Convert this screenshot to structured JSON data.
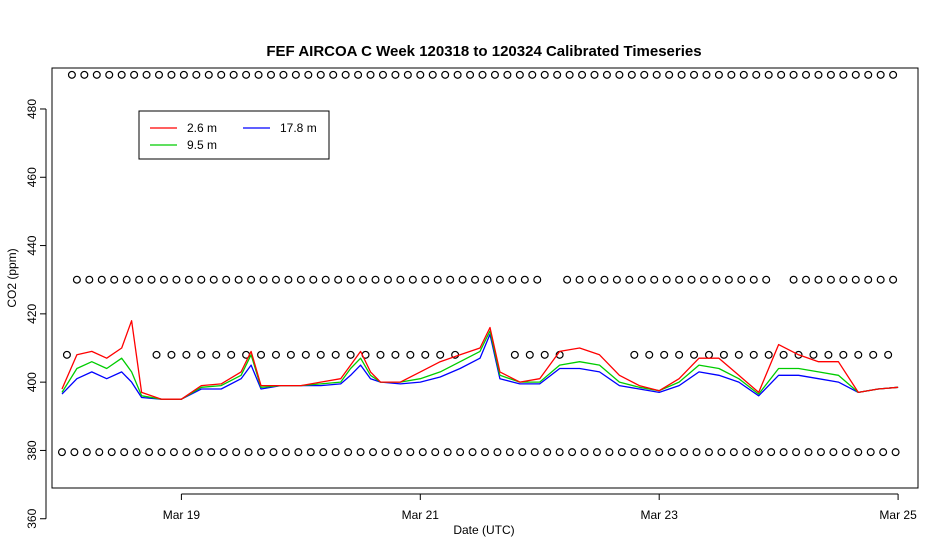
{
  "chart_data": {
    "type": "line",
    "title": "FEF AIRCOA C  Week 120318 to 120324  Calibrated Timeseries",
    "xlabel": "Date (UTC)",
    "ylabel": "CO2 (ppm)",
    "xlim": [
      "2012-03-17 22:00",
      "2012-03-25 04:00"
    ],
    "ylim": [
      369,
      492
    ],
    "x_ticks": [
      {
        "x": "2012-03-19",
        "label": "Mar 19"
      },
      {
        "x": "2012-03-21",
        "label": "Mar 21"
      },
      {
        "x": "2012-03-23",
        "label": "Mar 23"
      },
      {
        "x": "2012-03-25",
        "label": "Mar 25"
      }
    ],
    "y_ticks": [
      360,
      380,
      400,
      420,
      440,
      460,
      480
    ],
    "grid": false,
    "legend": {
      "placement": "top-left",
      "entries": [
        {
          "name": "2.6 m",
          "color": "#ff0000"
        },
        {
          "name": "9.5 m",
          "color": "#00cc00"
        },
        {
          "name": "17.8 m",
          "color": "#0000ff"
        }
      ]
    },
    "series": [
      {
        "name": "17.8 m",
        "color": "#0000ff",
        "x": [
          "2012-03-18 00:00",
          "2012-03-18 03:00",
          "2012-03-18 06:00",
          "2012-03-18 09:00",
          "2012-03-18 12:00",
          "2012-03-18 14:00",
          "2012-03-18 16:00",
          "2012-03-18 20:00",
          "2012-03-19 00:00",
          "2012-03-19 04:00",
          "2012-03-19 08:00",
          "2012-03-19 12:00",
          "2012-03-19 14:00",
          "2012-03-19 16:00",
          "2012-03-19 20:00",
          "2012-03-20 00:00",
          "2012-03-20 04:00",
          "2012-03-20 08:00",
          "2012-03-20 10:00",
          "2012-03-20 12:00",
          "2012-03-20 14:00",
          "2012-03-20 16:00",
          "2012-03-20 20:00",
          "2012-03-21 00:00",
          "2012-03-21 04:00",
          "2012-03-21 08:00",
          "2012-03-21 12:00",
          "2012-03-21 14:00",
          "2012-03-21 16:00",
          "2012-03-21 20:00",
          "2012-03-22 00:00",
          "2012-03-22 04:00",
          "2012-03-22 08:00",
          "2012-03-22 12:00",
          "2012-03-22 16:00",
          "2012-03-22 20:00",
          "2012-03-23 00:00",
          "2012-03-23 04:00",
          "2012-03-23 08:00",
          "2012-03-23 12:00",
          "2012-03-23 16:00",
          "2012-03-23 20:00",
          "2012-03-24 00:00",
          "2012-03-24 04:00",
          "2012-03-24 08:00",
          "2012-03-24 12:00",
          "2012-03-24 16:00",
          "2012-03-24 20:00",
          "2012-03-25 00:00"
        ],
        "y": [
          396.5,
          401,
          403,
          401,
          403,
          400,
          395.5,
          395,
          395,
          398,
          398,
          401,
          405,
          398,
          399,
          399,
          399,
          399.5,
          402,
          405,
          401,
          400,
          399.5,
          400,
          401.5,
          404,
          407,
          414,
          401,
          399.5,
          399.5,
          404,
          404,
          403,
          399,
          398,
          397,
          399,
          403,
          402,
          400,
          396,
          402,
          402,
          401,
          400,
          397,
          398,
          398.5
        ]
      },
      {
        "name": "9.5 m",
        "color": "#00cc00",
        "x": [
          "2012-03-18 00:00",
          "2012-03-18 03:00",
          "2012-03-18 06:00",
          "2012-03-18 09:00",
          "2012-03-18 12:00",
          "2012-03-18 14:00",
          "2012-03-18 16:00",
          "2012-03-18 20:00",
          "2012-03-19 00:00",
          "2012-03-19 04:00",
          "2012-03-19 08:00",
          "2012-03-19 12:00",
          "2012-03-19 14:00",
          "2012-03-19 16:00",
          "2012-03-19 20:00",
          "2012-03-20 00:00",
          "2012-03-20 04:00",
          "2012-03-20 08:00",
          "2012-03-20 10:00",
          "2012-03-20 12:00",
          "2012-03-20 14:00",
          "2012-03-20 16:00",
          "2012-03-20 20:00",
          "2012-03-21 00:00",
          "2012-03-21 04:00",
          "2012-03-21 08:00",
          "2012-03-21 12:00",
          "2012-03-21 14:00",
          "2012-03-21 16:00",
          "2012-03-21 20:00",
          "2012-03-22 00:00",
          "2012-03-22 04:00",
          "2012-03-22 08:00",
          "2012-03-22 12:00",
          "2012-03-22 16:00",
          "2012-03-22 20:00",
          "2012-03-23 00:00",
          "2012-03-23 04:00",
          "2012-03-23 08:00",
          "2012-03-23 12:00",
          "2012-03-23 16:00",
          "2012-03-23 20:00",
          "2012-03-24 00:00",
          "2012-03-24 04:00",
          "2012-03-24 08:00",
          "2012-03-24 12:00",
          "2012-03-24 16:00",
          "2012-03-24 20:00",
          "2012-03-25 00:00"
        ],
        "y": [
          397,
          404,
          406,
          404,
          407,
          403,
          396,
          395,
          395,
          398.5,
          399,
          402,
          408,
          398.5,
          399,
          399,
          399.5,
          400,
          404,
          407,
          402,
          400,
          400,
          401,
          403,
          406,
          409,
          415,
          402,
          400,
          400,
          405,
          406,
          405,
          400,
          398.5,
          397.5,
          400,
          405,
          404,
          401,
          396.5,
          404,
          404,
          403,
          402,
          397,
          398,
          398.5
        ]
      },
      {
        "name": "2.6 m",
        "color": "#ff0000",
        "x": [
          "2012-03-18 00:00",
          "2012-03-18 03:00",
          "2012-03-18 06:00",
          "2012-03-18 09:00",
          "2012-03-18 12:00",
          "2012-03-18 14:00",
          "2012-03-18 16:00",
          "2012-03-18 20:00",
          "2012-03-19 00:00",
          "2012-03-19 04:00",
          "2012-03-19 08:00",
          "2012-03-19 12:00",
          "2012-03-19 14:00",
          "2012-03-19 16:00",
          "2012-03-19 20:00",
          "2012-03-20 00:00",
          "2012-03-20 04:00",
          "2012-03-20 08:00",
          "2012-03-20 10:00",
          "2012-03-20 12:00",
          "2012-03-20 14:00",
          "2012-03-20 16:00",
          "2012-03-20 20:00",
          "2012-03-21 00:00",
          "2012-03-21 04:00",
          "2012-03-21 08:00",
          "2012-03-21 12:00",
          "2012-03-21 14:00",
          "2012-03-21 16:00",
          "2012-03-21 20:00",
          "2012-03-22 00:00",
          "2012-03-22 04:00",
          "2012-03-22 08:00",
          "2012-03-22 12:00",
          "2012-03-22 16:00",
          "2012-03-22 20:00",
          "2012-03-23 00:00",
          "2012-03-23 04:00",
          "2012-03-23 08:00",
          "2012-03-23 12:00",
          "2012-03-23 16:00",
          "2012-03-23 20:00",
          "2012-03-24 00:00",
          "2012-03-24 04:00",
          "2012-03-24 08:00",
          "2012-03-24 12:00",
          "2012-03-24 16:00",
          "2012-03-24 20:00",
          "2012-03-25 00:00"
        ],
        "y": [
          398,
          408,
          409,
          407,
          410,
          418,
          397,
          395,
          395,
          399,
          399.5,
          403,
          409,
          399,
          399,
          399,
          400,
          401,
          405,
          409,
          403,
          400,
          400,
          403,
          406,
          408,
          410,
          416,
          403,
          400,
          401,
          409,
          410,
          408,
          402,
          399,
          397.5,
          401,
          407,
          407,
          402,
          397,
          411,
          408,
          406,
          406,
          397,
          398,
          398.5
        ]
      }
    ],
    "calibration_markers": {
      "marker": "o",
      "color": "#000000",
      "levels": [
        {
          "y": 490,
          "x": [
            "2012-03-18 02:00",
            "2012-03-18 04:30",
            "2012-03-18 07:00",
            "2012-03-18 09:30",
            "2012-03-18 12:00",
            "2012-03-18 14:30",
            "2012-03-18 17:00",
            "2012-03-18 19:30",
            "2012-03-18 22:00",
            "2012-03-19 00:30",
            "2012-03-19 03:00",
            "2012-03-19 05:30",
            "2012-03-19 08:00",
            "2012-03-19 10:30",
            "2012-03-19 13:00",
            "2012-03-19 15:30",
            "2012-03-19 18:00",
            "2012-03-19 20:30",
            "2012-03-19 23:00",
            "2012-03-20 01:30",
            "2012-03-20 04:00",
            "2012-03-20 06:30",
            "2012-03-20 09:00",
            "2012-03-20 11:30",
            "2012-03-20 14:00",
            "2012-03-20 16:30",
            "2012-03-20 19:00",
            "2012-03-20 21:30",
            "2012-03-21 00:00",
            "2012-03-21 02:30",
            "2012-03-21 05:00",
            "2012-03-21 07:30",
            "2012-03-21 10:00",
            "2012-03-21 12:30",
            "2012-03-21 15:00",
            "2012-03-21 17:30",
            "2012-03-21 20:00",
            "2012-03-21 22:30",
            "2012-03-22 01:00",
            "2012-03-22 03:30",
            "2012-03-22 06:00",
            "2012-03-22 08:30",
            "2012-03-22 11:00",
            "2012-03-22 13:30",
            "2012-03-22 16:00",
            "2012-03-22 18:30",
            "2012-03-22 21:00",
            "2012-03-22 23:30",
            "2012-03-23 02:00",
            "2012-03-23 04:30",
            "2012-03-23 07:00",
            "2012-03-23 09:30",
            "2012-03-23 12:00",
            "2012-03-23 14:30",
            "2012-03-23 17:00",
            "2012-03-23 19:30",
            "2012-03-23 22:00",
            "2012-03-24 00:30",
            "2012-03-24 03:00",
            "2012-03-24 05:30",
            "2012-03-24 08:00",
            "2012-03-24 10:30",
            "2012-03-24 13:00",
            "2012-03-24 15:30",
            "2012-03-24 18:00",
            "2012-03-24 20:30",
            "2012-03-24 23:00"
          ]
        },
        {
          "y": 430,
          "x": [
            "2012-03-18 03:00",
            "2012-03-18 05:30",
            "2012-03-18 08:00",
            "2012-03-18 10:30",
            "2012-03-18 13:00",
            "2012-03-18 15:30",
            "2012-03-18 18:00",
            "2012-03-18 20:30",
            "2012-03-18 23:00",
            "2012-03-19 01:30",
            "2012-03-19 04:00",
            "2012-03-19 06:30",
            "2012-03-19 09:00",
            "2012-03-19 11:30",
            "2012-03-19 14:00",
            "2012-03-19 16:30",
            "2012-03-19 19:00",
            "2012-03-19 21:30",
            "2012-03-20 00:00",
            "2012-03-20 02:30",
            "2012-03-20 05:00",
            "2012-03-20 07:30",
            "2012-03-20 10:00",
            "2012-03-20 12:30",
            "2012-03-20 15:00",
            "2012-03-20 17:30",
            "2012-03-20 20:00",
            "2012-03-20 22:30",
            "2012-03-21 01:00",
            "2012-03-21 03:30",
            "2012-03-21 06:00",
            "2012-03-21 08:30",
            "2012-03-21 11:00",
            "2012-03-21 13:30",
            "2012-03-21 16:00",
            "2012-03-21 18:30",
            "2012-03-21 21:00",
            "2012-03-21 23:30",
            "2012-03-22 05:30",
            "2012-03-22 08:00",
            "2012-03-22 10:30",
            "2012-03-22 13:00",
            "2012-03-22 15:30",
            "2012-03-22 18:00",
            "2012-03-22 20:30",
            "2012-03-22 23:00",
            "2012-03-23 01:30",
            "2012-03-23 04:00",
            "2012-03-23 06:30",
            "2012-03-23 09:00",
            "2012-03-23 11:30",
            "2012-03-23 14:00",
            "2012-03-23 16:30",
            "2012-03-23 19:00",
            "2012-03-23 21:30",
            "2012-03-24 03:00",
            "2012-03-24 05:30",
            "2012-03-24 08:00",
            "2012-03-24 10:30",
            "2012-03-24 13:00",
            "2012-03-24 15:30",
            "2012-03-24 18:00",
            "2012-03-24 20:30",
            "2012-03-24 23:00"
          ]
        },
        {
          "y": 408,
          "x": [
            "2012-03-18 01:00",
            "2012-03-18 19:00",
            "2012-03-18 22:00",
            "2012-03-19 01:00",
            "2012-03-19 04:00",
            "2012-03-19 07:00",
            "2012-03-19 10:00",
            "2012-03-19 13:00",
            "2012-03-19 16:00",
            "2012-03-19 19:00",
            "2012-03-19 22:00",
            "2012-03-20 01:00",
            "2012-03-20 04:00",
            "2012-03-20 07:00",
            "2012-03-20 10:00",
            "2012-03-20 13:00",
            "2012-03-20 16:00",
            "2012-03-20 19:00",
            "2012-03-20 22:00",
            "2012-03-21 01:00",
            "2012-03-21 04:00",
            "2012-03-21 07:00",
            "2012-03-21 19:00",
            "2012-03-21 22:00",
            "2012-03-22 01:00",
            "2012-03-22 04:00",
            "2012-03-22 19:00",
            "2012-03-22 22:00",
            "2012-03-23 01:00",
            "2012-03-23 04:00",
            "2012-03-23 07:00",
            "2012-03-23 10:00",
            "2012-03-23 13:00",
            "2012-03-23 16:00",
            "2012-03-23 19:00",
            "2012-03-23 22:00",
            "2012-03-24 01:00",
            "2012-03-24 04:00",
            "2012-03-24 07:00",
            "2012-03-24 10:00",
            "2012-03-24 13:00",
            "2012-03-24 16:00",
            "2012-03-24 19:00",
            "2012-03-24 22:00"
          ]
        },
        {
          "y": 379.5,
          "x": [
            "2012-03-18 00:00",
            "2012-03-18 02:30",
            "2012-03-18 05:00",
            "2012-03-18 07:30",
            "2012-03-18 10:00",
            "2012-03-18 12:30",
            "2012-03-18 15:00",
            "2012-03-18 17:30",
            "2012-03-18 20:00",
            "2012-03-18 22:30",
            "2012-03-19 01:00",
            "2012-03-19 03:30",
            "2012-03-19 06:00",
            "2012-03-19 08:30",
            "2012-03-19 11:00",
            "2012-03-19 13:30",
            "2012-03-19 16:00",
            "2012-03-19 18:30",
            "2012-03-19 21:00",
            "2012-03-19 23:30",
            "2012-03-20 02:00",
            "2012-03-20 04:30",
            "2012-03-20 07:00",
            "2012-03-20 09:30",
            "2012-03-20 12:00",
            "2012-03-20 14:30",
            "2012-03-20 17:00",
            "2012-03-20 19:30",
            "2012-03-20 22:00",
            "2012-03-21 00:30",
            "2012-03-21 03:00",
            "2012-03-21 05:30",
            "2012-03-21 08:00",
            "2012-03-21 10:30",
            "2012-03-21 13:00",
            "2012-03-21 15:30",
            "2012-03-21 18:00",
            "2012-03-21 20:30",
            "2012-03-21 23:00",
            "2012-03-22 01:30",
            "2012-03-22 04:00",
            "2012-03-22 06:30",
            "2012-03-22 09:00",
            "2012-03-22 11:30",
            "2012-03-22 14:00",
            "2012-03-22 16:30",
            "2012-03-22 19:00",
            "2012-03-22 21:30",
            "2012-03-23 00:00",
            "2012-03-23 02:30",
            "2012-03-23 05:00",
            "2012-03-23 07:30",
            "2012-03-23 10:00",
            "2012-03-23 12:30",
            "2012-03-23 15:00",
            "2012-03-23 17:30",
            "2012-03-23 20:00",
            "2012-03-23 22:30",
            "2012-03-24 01:00",
            "2012-03-24 03:30",
            "2012-03-24 06:00",
            "2012-03-24 08:30",
            "2012-03-24 11:00",
            "2012-03-24 13:30",
            "2012-03-24 16:00",
            "2012-03-24 18:30",
            "2012-03-24 21:00",
            "2012-03-24 23:30"
          ]
        }
      ]
    }
  }
}
